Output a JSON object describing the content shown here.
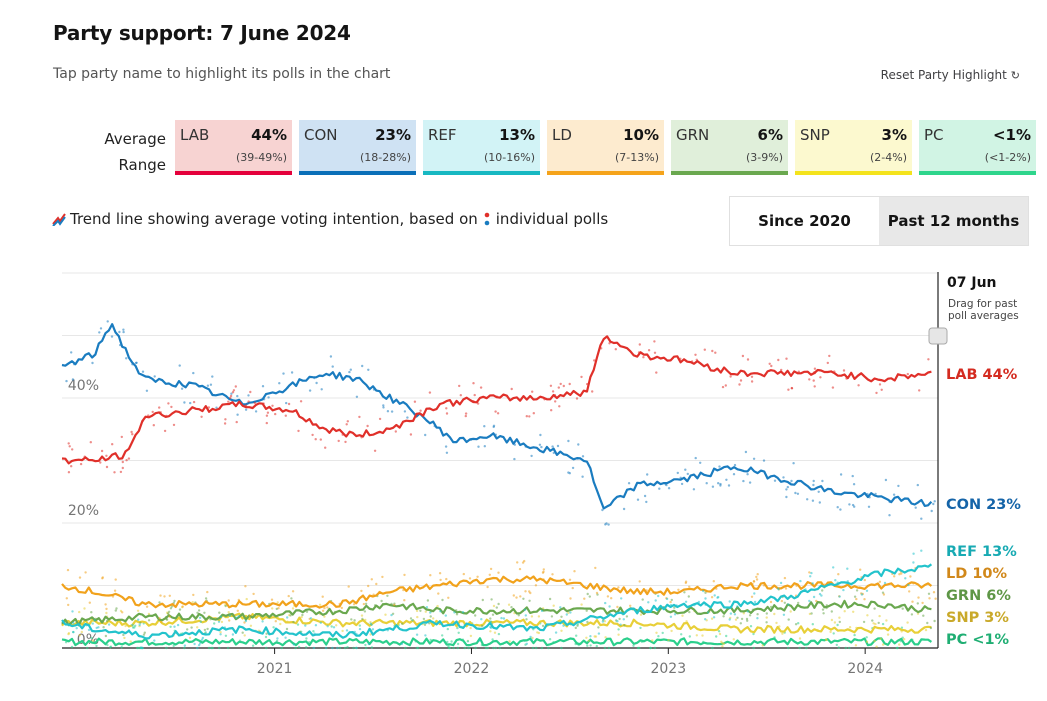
{
  "header": {
    "title": "Party support: 7 June 2024",
    "subtitle": "Tap party name to highlight its polls in the chart",
    "reset_label": "Reset Party Highlight"
  },
  "summary": {
    "average_label": "Average",
    "range_label": "Range",
    "parties": [
      {
        "name": "LAB",
        "avg": "44%",
        "range": "(39-49%)",
        "color": "#e4003b",
        "line": "#e0302a",
        "bg": "#f7d3d2"
      },
      {
        "name": "CON",
        "avg": "23%",
        "range": "(18-28%)",
        "color": "#0a6fb8",
        "line": "#1a7cc0",
        "bg": "#cfe2f3"
      },
      {
        "name": "REF",
        "avg": "13%",
        "range": "(10-16%)",
        "color": "#17b8c2",
        "line": "#23c3cc",
        "bg": "#d2f3f6"
      },
      {
        "name": "LD",
        "avg": "10%",
        "range": "(7-13%)",
        "color": "#f5a31a",
        "line": "#f1a21c",
        "bg": "#fdebcf"
      },
      {
        "name": "GRN",
        "avg": "6%",
        "range": "(3-9%)",
        "color": "#6aa84f",
        "line": "#6aa84f",
        "bg": "#e0efda"
      },
      {
        "name": "SNP",
        "avg": "3%",
        "range": "(2-4%)",
        "color": "#f4e31c",
        "line": "#e8cf38",
        "bg": "#fcf9cf"
      },
      {
        "name": "PC",
        "avg": "<1%",
        "range": "(<1-2%)",
        "color": "#2ed58c",
        "line": "#2bcf8c",
        "bg": "#d1f4e4"
      }
    ]
  },
  "legend": {
    "trend_text": "Trend line showing average voting intention, based on",
    "polls_text": "individual polls"
  },
  "toggle": {
    "options": [
      "Since 2020",
      "Past 12 months"
    ],
    "selected": "Past 12 months"
  },
  "chart_data": {
    "type": "line",
    "title": "Party support: 7 June 2024",
    "xlabel": "",
    "ylabel": "",
    "x_ticks": [
      "2021",
      "2022",
      "2023",
      "2024"
    ],
    "y_ticks": [
      "0%",
      "20%",
      "40%"
    ],
    "ylim": [
      0,
      60
    ],
    "grid": true,
    "current_date": "07 Jun",
    "drag_hint": "Drag for past poll averages",
    "end_labels": [
      "LAB 44%",
      "CON 23%",
      "REF 13%",
      "LD 10%",
      "GRN 6%",
      "SNP 3%",
      "PC <1%"
    ],
    "series": [
      {
        "name": "LAB",
        "color": "#e0302a",
        "points": [
          [
            "2020-01",
            30
          ],
          [
            "2020-03",
            30
          ],
          [
            "2020-05",
            31
          ],
          [
            "2020-06",
            37
          ],
          [
            "2020-09",
            38
          ],
          [
            "2020-12",
            39
          ],
          [
            "2021-03",
            38
          ],
          [
            "2021-05",
            35
          ],
          [
            "2021-07",
            34
          ],
          [
            "2021-09",
            35
          ],
          [
            "2021-12",
            39
          ],
          [
            "2022-03",
            40
          ],
          [
            "2022-06",
            40
          ],
          [
            "2022-09",
            41
          ],
          [
            "2022-10",
            50
          ],
          [
            "2022-12",
            47
          ],
          [
            "2023-03",
            46
          ],
          [
            "2023-06",
            44
          ],
          [
            "2023-09",
            44
          ],
          [
            "2023-12",
            44
          ],
          [
            "2024-03",
            43
          ],
          [
            "2024-06",
            44
          ]
        ]
      },
      {
        "name": "CON",
        "color": "#1a7cc0",
        "points": [
          [
            "2020-01",
            45
          ],
          [
            "2020-03",
            47
          ],
          [
            "2020-04",
            52
          ],
          [
            "2020-05",
            47
          ],
          [
            "2020-06",
            43
          ],
          [
            "2020-09",
            42
          ],
          [
            "2020-12",
            39
          ],
          [
            "2021-03",
            42
          ],
          [
            "2021-05",
            44
          ],
          [
            "2021-07",
            43
          ],
          [
            "2021-09",
            40
          ],
          [
            "2021-11",
            37
          ],
          [
            "2022-01",
            33
          ],
          [
            "2022-03",
            34
          ],
          [
            "2022-06",
            32
          ],
          [
            "2022-09",
            30
          ],
          [
            "2022-10",
            22
          ],
          [
            "2022-12",
            26
          ],
          [
            "2023-03",
            27
          ],
          [
            "2023-06",
            29
          ],
          [
            "2023-09",
            27
          ],
          [
            "2023-12",
            25
          ],
          [
            "2024-03",
            24
          ],
          [
            "2024-06",
            23
          ]
        ]
      },
      {
        "name": "REF",
        "color": "#23c3cc",
        "points": [
          [
            "2020-01",
            4
          ],
          [
            "2020-03",
            3
          ],
          [
            "2020-06",
            2
          ],
          [
            "2020-12",
            3
          ],
          [
            "2021-06",
            2
          ],
          [
            "2021-12",
            4
          ],
          [
            "2022-06",
            3
          ],
          [
            "2022-12",
            6
          ],
          [
            "2023-03",
            7
          ],
          [
            "2023-06",
            7
          ],
          [
            "2023-09",
            8
          ],
          [
            "2023-12",
            10
          ],
          [
            "2024-03",
            12
          ],
          [
            "2024-06",
            13
          ]
        ]
      },
      {
        "name": "LD",
        "color": "#f1a21c",
        "points": [
          [
            "2020-01",
            10
          ],
          [
            "2020-03",
            9
          ],
          [
            "2020-06",
            7
          ],
          [
            "2020-12",
            7
          ],
          [
            "2021-06",
            7
          ],
          [
            "2021-09",
            9
          ],
          [
            "2021-12",
            10
          ],
          [
            "2022-03",
            11
          ],
          [
            "2022-06",
            11
          ],
          [
            "2022-09",
            10
          ],
          [
            "2022-12",
            9
          ],
          [
            "2023-03",
            9
          ],
          [
            "2023-06",
            10
          ],
          [
            "2023-09",
            10
          ],
          [
            "2023-12",
            10
          ],
          [
            "2024-03",
            10
          ],
          [
            "2024-06",
            10
          ]
        ]
      },
      {
        "name": "GRN",
        "color": "#6aa84f",
        "points": [
          [
            "2020-01",
            4
          ],
          [
            "2020-06",
            5
          ],
          [
            "2020-12",
            5
          ],
          [
            "2021-06",
            6
          ],
          [
            "2021-09",
            7
          ],
          [
            "2021-12",
            6
          ],
          [
            "2022-06",
            6
          ],
          [
            "2022-12",
            6
          ],
          [
            "2023-06",
            6
          ],
          [
            "2023-12",
            7
          ],
          [
            "2024-03",
            7
          ],
          [
            "2024-06",
            6
          ]
        ]
      },
      {
        "name": "SNP",
        "color": "#e8cf38",
        "points": [
          [
            "2020-01",
            4
          ],
          [
            "2020-06",
            4
          ],
          [
            "2020-12",
            5
          ],
          [
            "2021-06",
            4
          ],
          [
            "2021-12",
            4
          ],
          [
            "2022-06",
            4
          ],
          [
            "2022-12",
            4
          ],
          [
            "2023-06",
            3
          ],
          [
            "2023-12",
            3
          ],
          [
            "2024-03",
            3
          ],
          [
            "2024-06",
            3
          ]
        ]
      },
      {
        "name": "PC",
        "color": "#2bcf8c",
        "points": [
          [
            "2020-01",
            1
          ],
          [
            "2020-06",
            1
          ],
          [
            "2021-06",
            1
          ],
          [
            "2022-06",
            1
          ],
          [
            "2023-06",
            1
          ],
          [
            "2024-06",
            1
          ]
        ]
      }
    ]
  }
}
